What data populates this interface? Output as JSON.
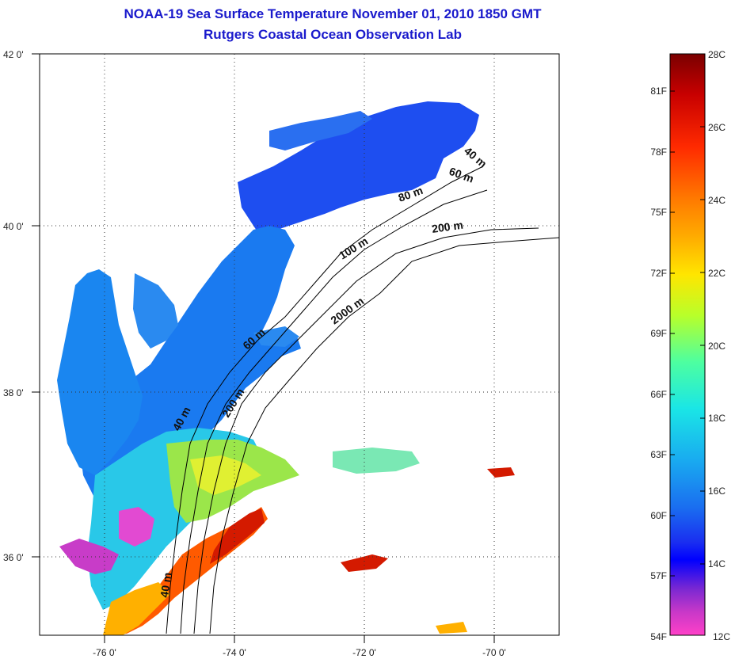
{
  "title": {
    "line1": "NOAA-19 Sea Surface Temperature November 01, 2010 1850 GMT",
    "line2": "Rutgers Coastal Ocean Observation Lab"
  },
  "map": {
    "lon_ticks": [
      "-76 0'",
      "-74 0'",
      "-72 0'",
      "-70 0'"
    ],
    "lat_ticks": [
      "42 0'",
      "40 0'",
      "38 0'",
      "36 0'"
    ],
    "grid": "dotted",
    "contour_labels": [
      "40 m",
      "60 m",
      "80 m",
      "200 m",
      "100 m",
      "2000 m",
      "60 m",
      "40 m",
      "200 m",
      "40 m"
    ]
  },
  "colorbar": {
    "fahrenheit": [
      "81F",
      "78F",
      "75F",
      "72F",
      "69F",
      "66F",
      "63F",
      "60F",
      "57F",
      "54F"
    ],
    "celsius": [
      "28C",
      "26C",
      "24C",
      "22C",
      "20C",
      "18C",
      "16C",
      "14C",
      "12C"
    ],
    "gradient_stops": [
      "#7a0000",
      "#c80000",
      "#ff2a00",
      "#ff7a00",
      "#ffb000",
      "#ffe600",
      "#b8ff2a",
      "#4dffa0",
      "#1ae6e6",
      "#19aaf0",
      "#1a6ef0",
      "#1a2ef0",
      "#0000ff",
      "#7a28d2",
      "#c838c8",
      "#ff40c8"
    ]
  }
}
